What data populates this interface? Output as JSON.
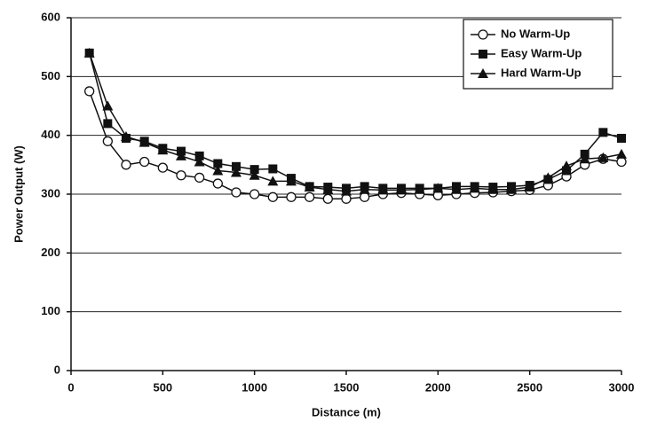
{
  "chart_data": {
    "type": "line",
    "xlabel": "Distance (m)",
    "ylabel": "Power Output (W)",
    "x": [
      100,
      200,
      300,
      400,
      500,
      600,
      700,
      800,
      900,
      1000,
      1100,
      1200,
      1300,
      1400,
      1500,
      1600,
      1700,
      1800,
      1900,
      2000,
      2100,
      2200,
      2300,
      2400,
      2500,
      2600,
      2700,
      2800,
      2900,
      3000
    ],
    "series": [
      {
        "name": "No Warm-Up",
        "color": "#111111",
        "marker": "open-circle",
        "values": [
          475,
          390,
          350,
          355,
          345,
          332,
          328,
          318,
          303,
          300,
          295,
          295,
          295,
          292,
          292,
          295,
          300,
          302,
          300,
          298,
          300,
          302,
          303,
          305,
          307,
          315,
          330,
          350,
          360,
          355
        ]
      },
      {
        "name": "Easy Warm-Up",
        "color": "#111111",
        "marker": "square",
        "values": [
          540,
          420,
          395,
          390,
          378,
          373,
          365,
          352,
          347,
          342,
          343,
          327,
          313,
          312,
          310,
          313,
          310,
          310,
          310,
          310,
          313,
          313,
          312,
          313,
          315,
          325,
          340,
          368,
          405,
          395
        ]
      },
      {
        "name": "Hard Warm-Up",
        "color": "#111111",
        "marker": "triangle",
        "values": [
          540,
          450,
          398,
          388,
          375,
          365,
          355,
          340,
          337,
          332,
          322,
          322,
          312,
          308,
          305,
          308,
          307,
          307,
          308,
          310,
          308,
          310,
          308,
          308,
          312,
          328,
          348,
          360,
          362,
          368
        ]
      }
    ],
    "xlim": [
      0,
      3000
    ],
    "xticks": [
      0,
      500,
      1000,
      1500,
      2000,
      2500,
      3000
    ],
    "ylim": [
      0,
      600
    ],
    "yticks": [
      0,
      100,
      200,
      300,
      400,
      500,
      600
    ],
    "grid": true,
    "legend": "upper right"
  }
}
